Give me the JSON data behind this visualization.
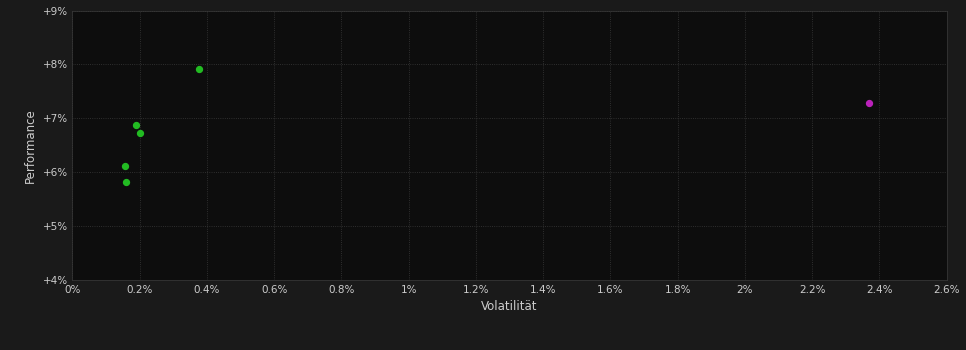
{
  "background_color": "#1a1a1a",
  "plot_bg_color": "#0d0d0d",
  "grid_color": "#3a3a3a",
  "text_color": "#cccccc",
  "xlabel": "Volatilität",
  "ylabel": "Performance",
  "xlim": [
    0.0,
    0.026
  ],
  "ylim": [
    0.04,
    0.09
  ],
  "xtick_vals": [
    0.0,
    0.002,
    0.004,
    0.006,
    0.008,
    0.01,
    0.012,
    0.014,
    0.016,
    0.018,
    0.02,
    0.022,
    0.024,
    0.026
  ],
  "xtick_labels": [
    "0%",
    "0.2%",
    "0.4%",
    "0.6%",
    "0.8%",
    "1%",
    "1.2%",
    "1.4%",
    "1.6%",
    "1.8%",
    "2%",
    "2.2%",
    "2.4%",
    "2.6%"
  ],
  "ytick_vals": [
    0.04,
    0.05,
    0.06,
    0.07,
    0.08,
    0.09
  ],
  "ytick_labels": [
    "+4%",
    "+5%",
    "+6%",
    "+7%",
    "+8%",
    "+9%"
  ],
  "green_points": [
    [
      0.0019,
      0.0688
    ],
    [
      0.002,
      0.0672
    ],
    [
      0.00155,
      0.0612
    ],
    [
      0.00158,
      0.0582
    ],
    [
      0.00375,
      0.0792
    ]
  ],
  "magenta_points": [
    [
      0.0237,
      0.0728
    ]
  ],
  "green_color": "#22bb22",
  "magenta_color": "#bb22bb",
  "point_size": 18
}
